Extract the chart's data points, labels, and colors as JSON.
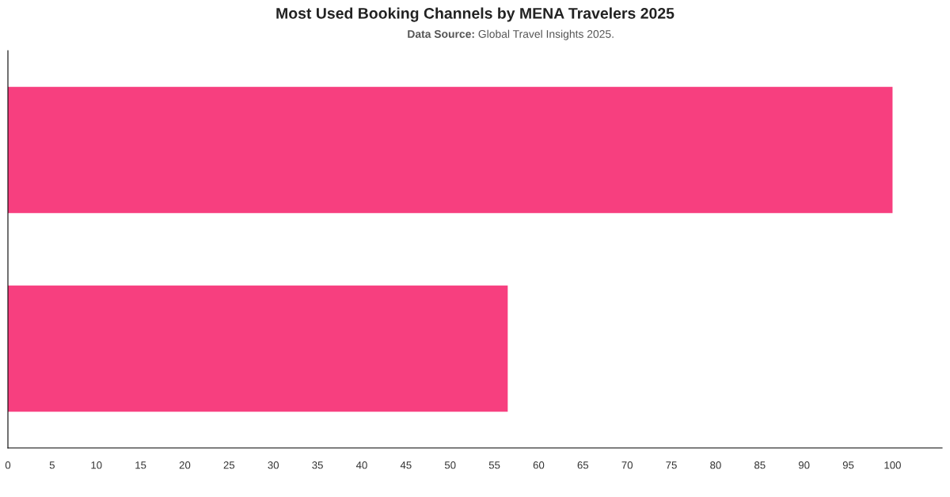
{
  "chart_data": {
    "type": "bar",
    "orientation": "horizontal",
    "title": "Most Used Booking Channels by MENA Travelers 2025",
    "subtitle": "Data Source: Global Travel Insights 2025.",
    "categories": [
      null,
      null
    ],
    "values": [
      100,
      56.5
    ],
    "color": "#f73f7f",
    "xlim": [
      0,
      105.6
    ],
    "xticks": [
      0,
      5,
      10,
      15,
      20,
      25,
      30,
      35,
      40,
      45,
      50,
      55,
      60,
      65,
      70,
      75,
      80,
      85,
      90,
      95,
      100
    ],
    "grid": false
  }
}
